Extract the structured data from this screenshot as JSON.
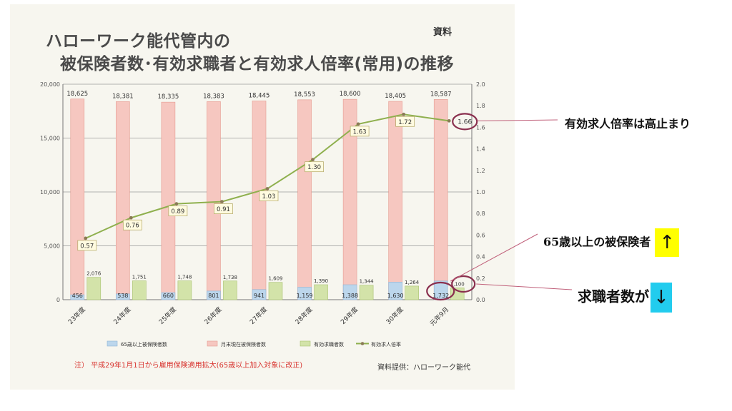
{
  "page": {
    "title_line1": "ハローワーク能代管内の",
    "title_line2": "被保険者数･有効求職者と有効求人倍率(常用)の推移",
    "tag": "資料",
    "note": "注） 平成29年1月1日から雇用保険適用拡大(65歳以上加入対象に改正)",
    "credit": "資料提供：ハローワーク能代"
  },
  "annotations": {
    "ratio": "有効求人倍率は高止まり",
    "elderly": "65歳以上の被保険者",
    "elderly_arrow": "↑",
    "seekers": "求職者数が",
    "seekers_arrow": "↓"
  },
  "colors": {
    "insured": "#f6c7c0",
    "insured_stroke": "#e59a90",
    "elderly": "#bcd6ec",
    "elderly_stroke": "#8fb2d4",
    "seekers": "#d3e3a9",
    "seekers_stroke": "#a9c270",
    "ratio_line": "#8fb04e",
    "circle": "#8a2f4e",
    "annotation_line": "#c0607a"
  },
  "chart_data": {
    "type": "bar",
    "categories": [
      "23年度",
      "24年度",
      "25年度",
      "26年度",
      "27年度",
      "28年度",
      "29年度",
      "30年度",
      "元年9月"
    ],
    "series": [
      {
        "name": "65歳以上被保険者数",
        "kind": "bar",
        "axis": "left",
        "values": [
          456,
          538,
          660,
          801,
          941,
          1159,
          1388,
          1630,
          1732
        ]
      },
      {
        "name": "月末現在被保険者数",
        "kind": "bar",
        "axis": "left",
        "values": [
          18625,
          18381,
          18335,
          18383,
          18445,
          18553,
          18600,
          18405,
          18587
        ]
      },
      {
        "name": "有効求職者数",
        "kind": "bar",
        "axis": "left",
        "values": [
          2076,
          1751,
          1748,
          1738,
          1609,
          1390,
          1344,
          1264,
          1100
        ]
      },
      {
        "name": "有効求人倍率",
        "kind": "line",
        "axis": "right",
        "values": [
          0.57,
          0.76,
          0.89,
          0.91,
          1.03,
          1.3,
          1.63,
          1.72,
          1.66
        ]
      }
    ],
    "insured_labels": [
      "18,625",
      "18,381",
      "18,335",
      "18,383",
      "18,445",
      "18,553",
      "18,600",
      "18,405",
      "18,587"
    ],
    "elderly_labels": [
      "456",
      "538",
      "660",
      "801",
      "941",
      "1,159",
      "1,388",
      "1,630",
      "1,732"
    ],
    "seekers_labels": [
      "2,076",
      "1,751",
      "1,748",
      "1,738",
      "1,609",
      "1,390",
      "1,344",
      "1,264",
      "1,100"
    ],
    "ratio_labels": [
      "0.57",
      "0.76",
      "0.89",
      "0.91",
      "1.03",
      "1.30",
      "1.63",
      "1.72",
      "1.66"
    ],
    "ylim": [
      0,
      20000
    ],
    "y2lim": [
      0,
      2.0
    ],
    "yticks": [
      "0",
      "5,000",
      "10,000",
      "15,000",
      "20,000"
    ],
    "y2ticks": [
      "0.0",
      "0.2",
      "0.4",
      "0.6",
      "0.8",
      "1.0",
      "1.2",
      "1.4",
      "1.6",
      "1.8",
      "2.0"
    ],
    "legend": [
      "65歳以上被保険者数",
      "月末現在被保険者数",
      "有効求職者数",
      "有効求人倍率"
    ],
    "legend_position": "bottom"
  }
}
